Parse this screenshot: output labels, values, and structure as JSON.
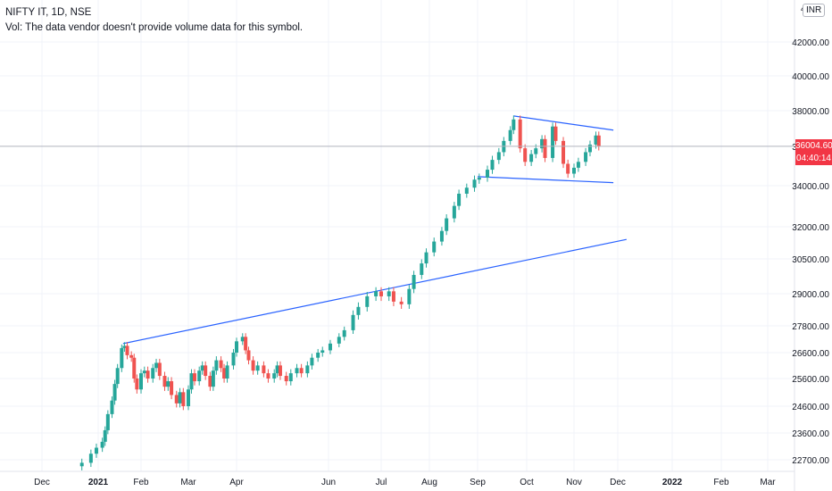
{
  "header": {
    "symbol_line": "NIFTY IT, 1D, NSE",
    "volume_note": "Vol: The data vendor doesn't provide volume data for this symbol.",
    "currency_badge": "INR",
    "top_price_fragment": "4"
  },
  "last_price": {
    "value_label": "36004.60",
    "countdown": "04:40:14",
    "color": "#f23645"
  },
  "colors": {
    "up": "#26a69a",
    "down": "#ef5350",
    "trendline": "#2962ff",
    "grid": "#f0f3fa",
    "axis_text": "#131722"
  },
  "chart_data": {
    "type": "candlestick",
    "title": "NIFTY IT, 1D, NSE",
    "scale": "log",
    "y_ticks": [
      42000,
      40000,
      38000,
      36000,
      34000,
      32000,
      30500,
      29000,
      27800,
      26600,
      25600,
      24600,
      23600,
      22700
    ],
    "y_tick_labels": [
      "42000.00",
      "40000.00",
      "38000.00",
      "36000.00",
      "34000.00",
      "32000.00",
      "30500.00",
      "29000.00",
      "27800.00",
      "26600.00",
      "25600.00",
      "24600.00",
      "23600.00",
      "22700.00"
    ],
    "x_tick_labels": [
      "Dec",
      "2021",
      "Feb",
      "Mar",
      "Apr",
      "Jun",
      "Jul",
      "Aug",
      "Sep",
      "Oct",
      "Nov",
      "Dec",
      "2022",
      "Feb",
      "Mar"
    ],
    "x_tick_dates": [
      "2020-12-01",
      "2021-01-01",
      "2021-02-01",
      "2021-03-01",
      "2021-04-01",
      "2021-06-01",
      "2021-07-01",
      "2021-08-01",
      "2021-09-01",
      "2021-10-01",
      "2021-11-01",
      "2021-12-01",
      "2022-01-01",
      "2022-02-01",
      "2022-03-01"
    ],
    "bold_x_ticks": [
      "2021",
      "2022"
    ],
    "ylim": [
      22400,
      44500
    ],
    "xlim": [
      "2020-11-15",
      "2022-03-31"
    ],
    "last_close": 36004.6,
    "closes": [
      [
        "2020-12-23",
        22600
      ],
      [
        "2020-12-28",
        22900
      ],
      [
        "2020-12-31",
        23100
      ],
      [
        "2021-01-04",
        23300
      ],
      [
        "2021-01-06",
        23700
      ],
      [
        "2021-01-08",
        24300
      ],
      [
        "2021-01-11",
        24800
      ],
      [
        "2021-01-13",
        25400
      ],
      [
        "2021-01-15",
        26000
      ],
      [
        "2021-01-18",
        26800
      ],
      [
        "2021-01-20",
        26900
      ],
      [
        "2021-01-22",
        26500
      ],
      [
        "2021-01-25",
        26400
      ],
      [
        "2021-01-27",
        25600
      ],
      [
        "2021-01-29",
        25200
      ],
      [
        "2021-02-01",
        25800
      ],
      [
        "2021-02-03",
        25900
      ],
      [
        "2021-02-05",
        25600
      ],
      [
        "2021-02-08",
        26000
      ],
      [
        "2021-02-10",
        26200
      ],
      [
        "2021-02-12",
        25700
      ],
      [
        "2021-02-15",
        25300
      ],
      [
        "2021-02-17",
        25500
      ],
      [
        "2021-02-19",
        25000
      ],
      [
        "2021-02-22",
        24700
      ],
      [
        "2021-02-24",
        25100
      ],
      [
        "2021-02-26",
        24600
      ],
      [
        "2021-03-01",
        25200
      ],
      [
        "2021-03-03",
        25800
      ],
      [
        "2021-03-05",
        25500
      ],
      [
        "2021-03-08",
        25900
      ],
      [
        "2021-03-10",
        26100
      ],
      [
        "2021-03-12",
        25700
      ],
      [
        "2021-03-15",
        25300
      ],
      [
        "2021-03-17",
        25900
      ],
      [
        "2021-03-19",
        26300
      ],
      [
        "2021-03-22",
        26000
      ],
      [
        "2021-03-24",
        25600
      ],
      [
        "2021-03-26",
        26100
      ],
      [
        "2021-03-30",
        26600
      ],
      [
        "2021-04-01",
        27100
      ],
      [
        "2021-04-05",
        27300
      ],
      [
        "2021-04-07",
        26700
      ],
      [
        "2021-04-09",
        26300
      ],
      [
        "2021-04-12",
        25900
      ],
      [
        "2021-04-15",
        26100
      ],
      [
        "2021-04-19",
        25800
      ],
      [
        "2021-04-22",
        25600
      ],
      [
        "2021-04-26",
        25800
      ],
      [
        "2021-04-28",
        26100
      ],
      [
        "2021-04-30",
        25700
      ],
      [
        "2021-05-04",
        25500
      ],
      [
        "2021-05-07",
        25800
      ],
      [
        "2021-05-11",
        26000
      ],
      [
        "2021-05-14",
        25800
      ],
      [
        "2021-05-18",
        26100
      ],
      [
        "2021-05-21",
        26400
      ],
      [
        "2021-05-25",
        26600
      ],
      [
        "2021-05-28",
        26700
      ],
      [
        "2021-06-02",
        27000
      ],
      [
        "2021-06-07",
        27300
      ],
      [
        "2021-06-10",
        27600
      ],
      [
        "2021-06-15",
        28200
      ],
      [
        "2021-06-18",
        28500
      ],
      [
        "2021-06-23",
        28900
      ],
      [
        "2021-06-28",
        29100
      ],
      [
        "2021-07-01",
        28900
      ],
      [
        "2021-07-06",
        29100
      ],
      [
        "2021-07-09",
        28700
      ],
      [
        "2021-07-14",
        28600
      ],
      [
        "2021-07-19",
        29200
      ],
      [
        "2021-07-22",
        29800
      ],
      [
        "2021-07-27",
        30300
      ],
      [
        "2021-07-30",
        30800
      ],
      [
        "2021-08-04",
        31300
      ],
      [
        "2021-08-09",
        31800
      ],
      [
        "2021-08-12",
        32400
      ],
      [
        "2021-08-17",
        33000
      ],
      [
        "2021-08-20",
        33600
      ],
      [
        "2021-08-25",
        33900
      ],
      [
        "2021-08-30",
        34300
      ],
      [
        "2021-09-02",
        34400
      ],
      [
        "2021-09-07",
        34800
      ],
      [
        "2021-09-10",
        35300
      ],
      [
        "2021-09-14",
        35700
      ],
      [
        "2021-09-17",
        36300
      ],
      [
        "2021-09-21",
        36900
      ],
      [
        "2021-09-23",
        37500
      ],
      [
        "2021-09-27",
        35900
      ],
      [
        "2021-09-30",
        35200
      ],
      [
        "2021-10-04",
        35600
      ],
      [
        "2021-10-07",
        35900
      ],
      [
        "2021-10-11",
        36400
      ],
      [
        "2021-10-13",
        35400
      ],
      [
        "2021-10-18",
        37100
      ],
      [
        "2021-10-20",
        36300
      ],
      [
        "2021-10-25",
        35100
      ],
      [
        "2021-10-28",
        34600
      ],
      [
        "2021-11-01",
        34900
      ],
      [
        "2021-11-04",
        35200
      ],
      [
        "2021-11-09",
        35700
      ],
      [
        "2021-11-12",
        36100
      ],
      [
        "2021-11-16",
        36600
      ],
      [
        "2021-11-18",
        36004.6
      ]
    ],
    "trendlines": [
      {
        "name": "long-rising",
        "p1": [
          "2021-01-19",
          27000
        ],
        "p2": [
          "2021-12-06",
          31400
        ]
      },
      {
        "name": "wedge-upper",
        "p1": [
          "2021-09-23",
          37700
        ],
        "p2": [
          "2021-11-28",
          36900
        ]
      },
      {
        "name": "wedge-lower",
        "p1": [
          "2021-09-01",
          34450
        ],
        "p2": [
          "2021-11-28",
          34150
        ]
      }
    ]
  }
}
